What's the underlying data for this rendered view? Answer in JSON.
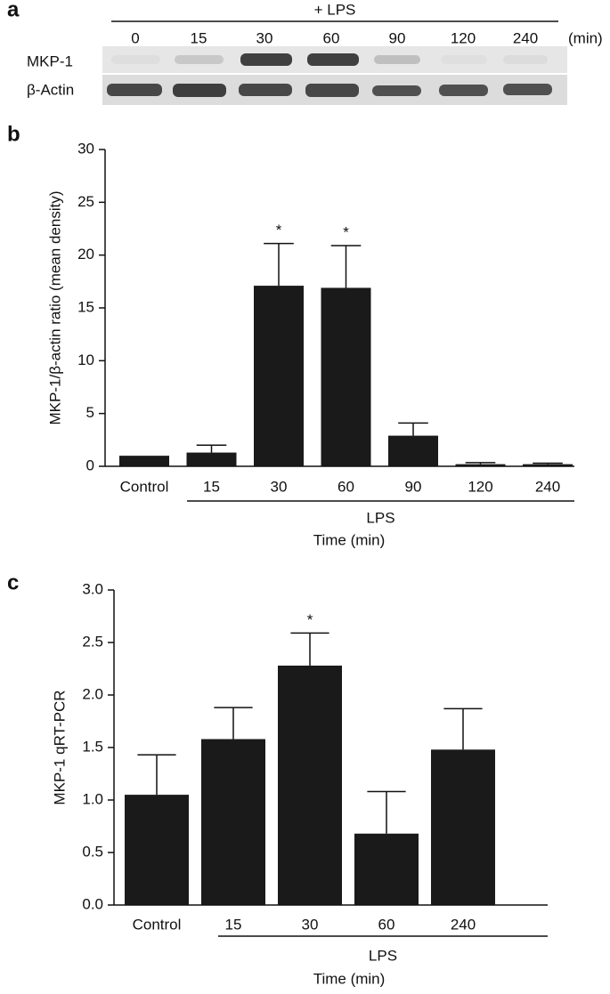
{
  "blot": {
    "panel_label": "a",
    "treatment": "+ LPS",
    "lanes": [
      "0",
      "15",
      "30",
      "60",
      "90",
      "120",
      "240"
    ],
    "unit": "(min)",
    "rows": [
      "MKP-1",
      "β-Actin"
    ]
  },
  "chart_data": [
    {
      "type": "bar",
      "panel_label": "b",
      "ylabel": "MKP-1/β-actin ratio (mean density)",
      "xlabel": "Time (min)",
      "group_label": "LPS",
      "categories": [
        "Control",
        "15",
        "30",
        "60",
        "90",
        "120",
        "240"
      ],
      "values": [
        1.0,
        1.3,
        17.1,
        16.9,
        2.9,
        0.2,
        0.2
      ],
      "errors": [
        null,
        0.7,
        4.0,
        4.0,
        1.2,
        0.15,
        0.1
      ],
      "markers": [
        null,
        null,
        "*",
        "*",
        null,
        null,
        null
      ],
      "color": "#1a1a1a",
      "ylim": [
        0,
        30
      ],
      "yticks": [
        0,
        5,
        10,
        15,
        20,
        25,
        30
      ]
    },
    {
      "type": "bar",
      "panel_label": "c",
      "ylabel": "MKP-1 qRT-PCR",
      "xlabel": "Time (min)",
      "group_label": "LPS",
      "categories": [
        "Control",
        "15",
        "30",
        "60",
        "240"
      ],
      "values": [
        1.05,
        1.58,
        2.28,
        0.68,
        1.48
      ],
      "errors": [
        0.38,
        0.3,
        0.31,
        0.4,
        0.39
      ],
      "markers": [
        null,
        null,
        "*",
        null,
        null
      ],
      "color": "#1a1a1a",
      "ylim": [
        0,
        3
      ],
      "yticks": [
        {
          "value": 0,
          "label": "0.0"
        },
        0.5,
        {
          "value": 1,
          "label": "1.0"
        },
        1.5,
        {
          "value": 2,
          "label": "2.0"
        },
        2.5,
        {
          "value": 3,
          "label": "3.0"
        }
      ]
    }
  ]
}
